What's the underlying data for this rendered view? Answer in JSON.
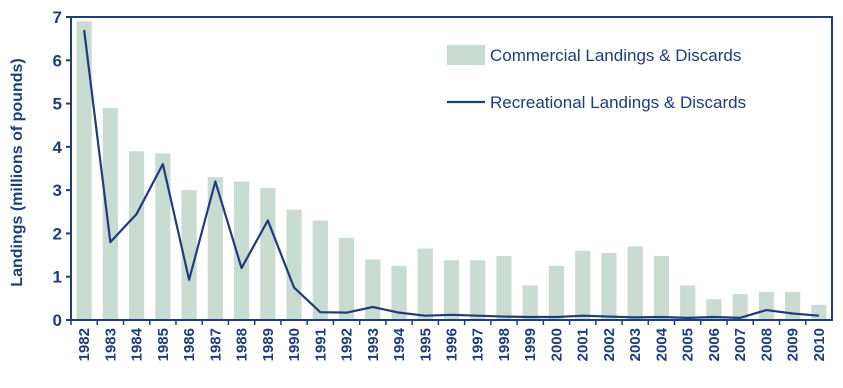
{
  "chart_data": {
    "type": "bar+line",
    "title": "",
    "xlabel": "",
    "ylabel": "Landings (millions of pounds)",
    "ylim": [
      0,
      7
    ],
    "yticks": [
      "0",
      "1",
      "2",
      "3",
      "4",
      "5",
      "6",
      "7"
    ],
    "categories": [
      "1982",
      "1983",
      "1984",
      "1985",
      "1986",
      "1987",
      "1988",
      "1989",
      "1990",
      "1991",
      "1992",
      "1993",
      "1994",
      "1995",
      "1996",
      "1997",
      "1998",
      "1999",
      "2000",
      "2001",
      "2002",
      "2003",
      "2004",
      "2005",
      "2006",
      "2007",
      "2008",
      "2009",
      "2010"
    ],
    "series": [
      {
        "name": "Commercial Landings & Discards",
        "kind": "bar",
        "color": "#c9dcd2",
        "values": [
          6.9,
          4.9,
          3.9,
          3.85,
          3.0,
          3.3,
          3.2,
          3.05,
          2.55,
          2.3,
          1.9,
          1.4,
          1.25,
          1.65,
          1.38,
          1.38,
          1.48,
          0.8,
          1.25,
          1.6,
          1.55,
          1.7,
          1.48,
          0.8,
          0.48,
          0.6,
          0.65,
          0.65,
          0.35
        ]
      },
      {
        "name": "Recreational Landings & Discards",
        "kind": "line",
        "color": "#1f3d7a",
        "values": [
          6.7,
          1.8,
          2.45,
          3.6,
          0.93,
          3.2,
          1.2,
          2.3,
          0.75,
          0.18,
          0.17,
          0.3,
          0.17,
          0.1,
          0.12,
          0.1,
          0.08,
          0.07,
          0.07,
          0.1,
          0.08,
          0.06,
          0.07,
          0.05,
          0.07,
          0.05,
          0.23,
          0.15,
          0.1
        ]
      }
    ],
    "legend_position": "top-right",
    "grid": false
  }
}
